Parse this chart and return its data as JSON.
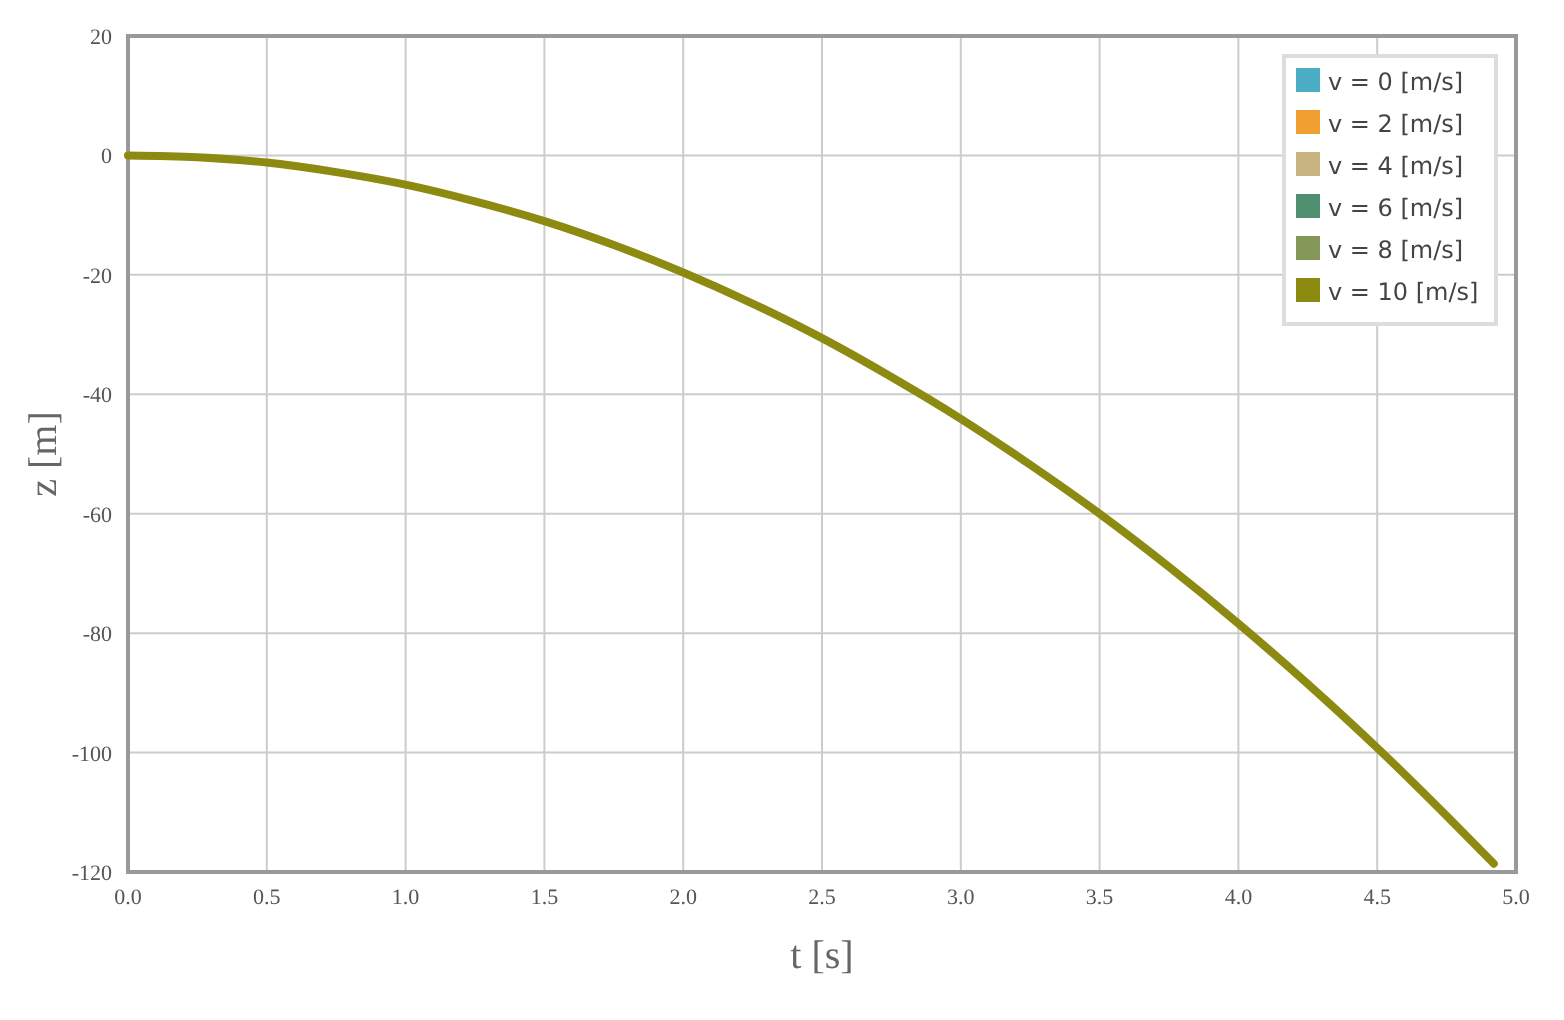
{
  "chart_data": {
    "type": "line",
    "xlabel": "t [s]",
    "ylabel": "z [m]",
    "xlim": [
      0,
      5
    ],
    "ylim": [
      -120,
      20
    ],
    "xticks": [
      {
        "value": 0,
        "label": "0.0"
      },
      {
        "value": 0.5,
        "label": "0.5"
      },
      {
        "value": 1,
        "label": "1.0"
      },
      {
        "value": 1.5,
        "label": "1.5"
      },
      {
        "value": 2,
        "label": "2.0"
      },
      {
        "value": 2.5,
        "label": "2.5"
      },
      {
        "value": 3,
        "label": "3.0"
      },
      {
        "value": 3.5,
        "label": "3.5"
      },
      {
        "value": 4,
        "label": "4.0"
      },
      {
        "value": 4.5,
        "label": "4.5"
      },
      {
        "value": 5,
        "label": "5.0"
      }
    ],
    "yticks": [
      -120,
      -100,
      -80,
      -60,
      -40,
      -20,
      0,
      20
    ],
    "x": [
      0,
      0.25,
      0.5,
      0.75,
      1,
      1.25,
      1.5,
      1.75,
      2,
      2.25,
      2.5,
      2.75,
      3,
      3.25,
      3.5,
      3.75,
      4,
      4.25,
      4.5,
      4.75,
      4.92
    ],
    "series": [
      {
        "name": "v = 0 [m/s]",
        "color": "#4bacc6",
        "values": [
          null,
          null,
          null,
          null,
          null,
          null,
          null,
          null,
          null,
          null,
          null,
          null,
          null,
          null,
          null,
          null,
          null,
          null,
          null,
          null,
          null
        ]
      },
      {
        "name": "v = 2 [m/s]",
        "color": "#f0a030",
        "values": [
          null,
          null,
          null,
          null,
          null,
          null,
          null,
          null,
          null,
          null,
          null,
          null,
          null,
          null,
          null,
          null,
          null,
          null,
          null,
          null,
          null
        ]
      },
      {
        "name": "v = 4 [m/s]",
        "color": "#c8b480",
        "values": [
          null,
          null,
          null,
          null,
          null,
          null,
          null,
          null,
          null,
          null,
          null,
          null,
          null,
          null,
          null,
          null,
          null,
          null,
          null,
          null,
          null
        ]
      },
      {
        "name": "v = 6 [m/s]",
        "color": "#4f9070",
        "values": [
          null,
          null,
          null,
          null,
          null,
          null,
          null,
          null,
          null,
          null,
          null,
          null,
          null,
          null,
          null,
          null,
          null,
          null,
          null,
          null,
          null
        ]
      },
      {
        "name": "v = 8 [m/s]",
        "color": "#84985a",
        "values": [
          null,
          null,
          null,
          null,
          null,
          null,
          null,
          null,
          null,
          null,
          null,
          null,
          null,
          null,
          null,
          null,
          null,
          null,
          null,
          null,
          null
        ]
      },
      {
        "name": "v = 10 [m/s]",
        "color": "#8c8a10",
        "values": [
          0,
          -0.3,
          -1.2,
          -2.8,
          -4.9,
          -7.7,
          -11,
          -15,
          -19.6,
          -24.8,
          -30.6,
          -37.1,
          -44.1,
          -51.8,
          -60,
          -68.9,
          -78.4,
          -88.5,
          -99.2,
          -110.6,
          -118.6
        ]
      }
    ],
    "grid": true,
    "legend": "top right",
    "marker": "none",
    "line_style": "solid"
  }
}
